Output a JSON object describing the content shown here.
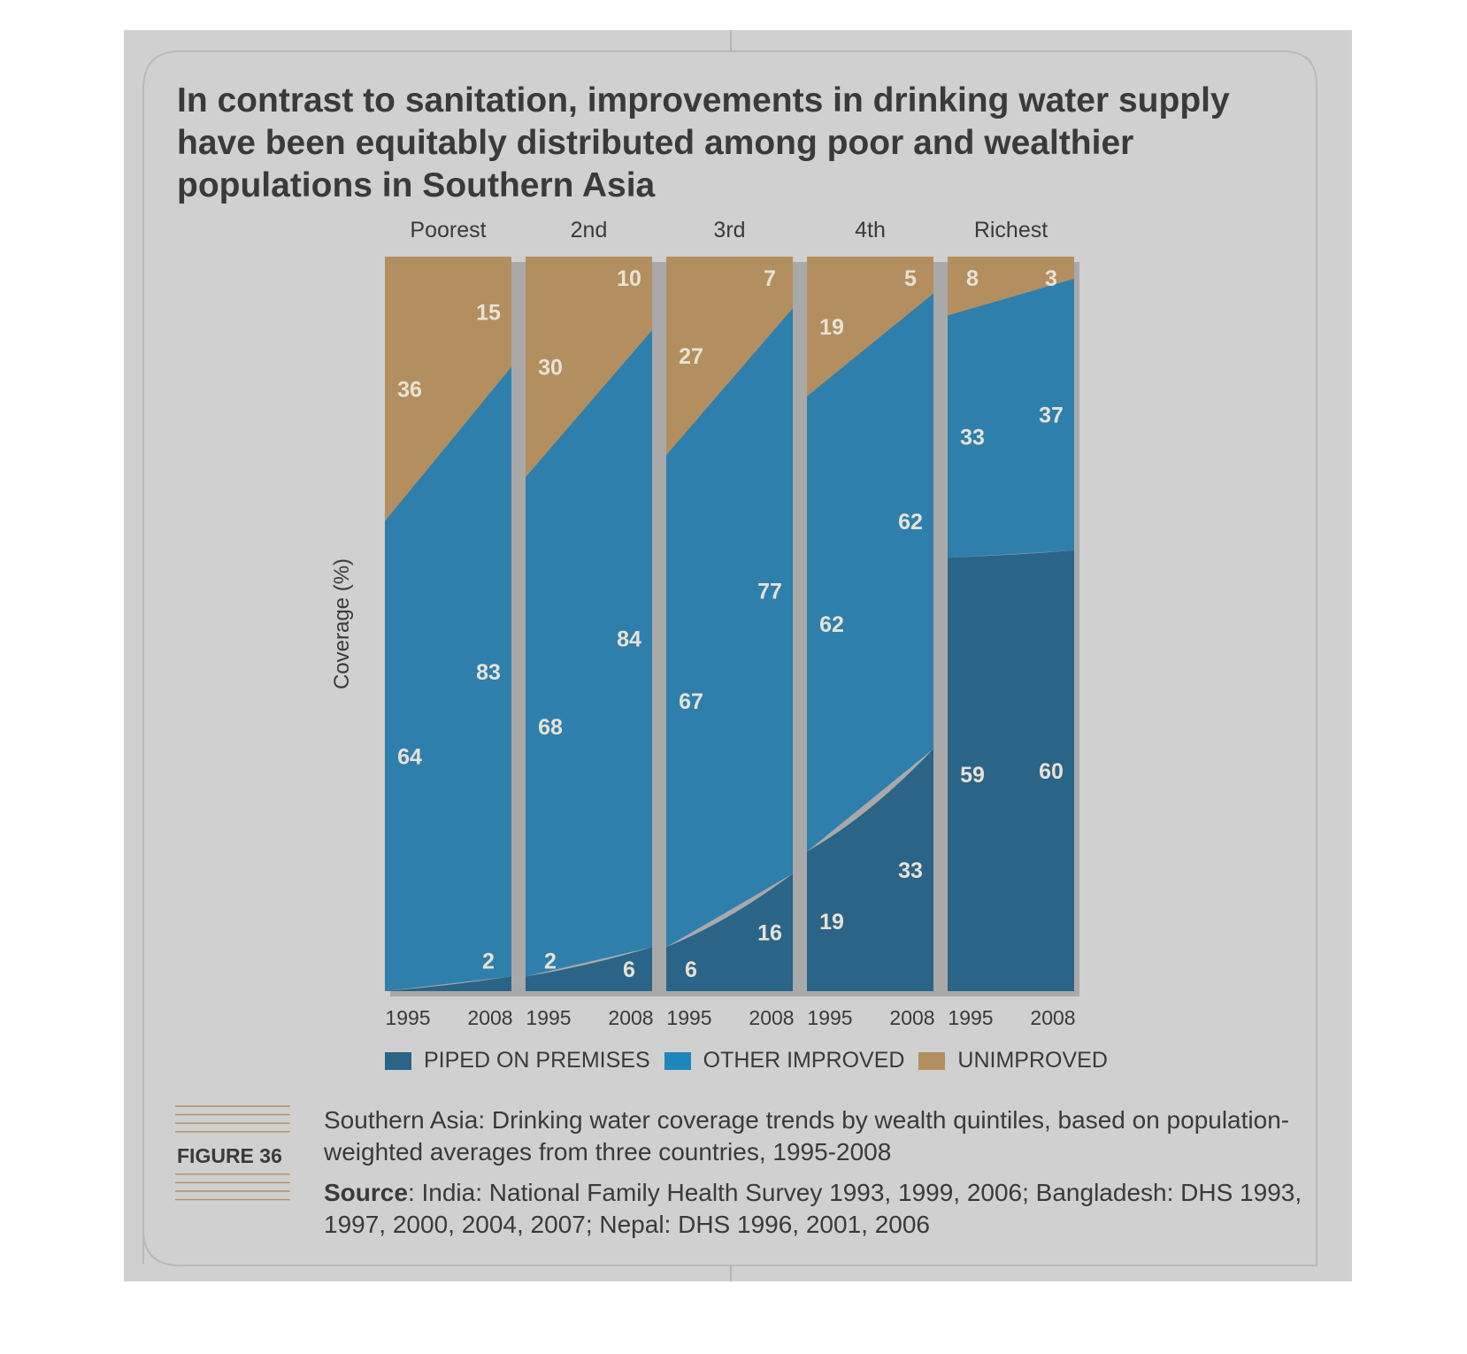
{
  "title_lines": [
    "In contrast to sanitation, improvements in drinking water supply",
    "have been equitably distributed among poor and wealthier",
    "populations in Southern Asia"
  ],
  "figure_label": "FIGURE 36",
  "caption": "Southern Asia: Drinking water coverage trends by wealth quintiles, based on population-weighted averages from three countries, 1995-2008",
  "source_label": "Source",
  "source_text": ": India: National Family Health Survey 1993, 1999, 2006; Bangladesh: DHS 1993, 1997, 2000, 2004, 2007; Nepal: DHS 1996, 2001, 2006",
  "colors": {
    "page_background": "#d0d0d0",
    "piped": "#2a6487",
    "other_improved": "#2e7fac",
    "unimproved": "#b38f5f",
    "text": "#3a3a3a",
    "data_label": "#e8e2d6",
    "figure_rule": "#b38f5f"
  },
  "chart_data": {
    "type": "area",
    "layout": "small multiples, 100% stacked areas per wealth quintile",
    "ylabel": "Coverage (%)",
    "ylim": [
      0,
      100
    ],
    "panels": [
      {
        "group": "Poorest",
        "x": [
          "1995",
          "2008"
        ],
        "series": [
          {
            "name": "PIPED ON PREMISES",
            "values": [
              0,
              2
            ]
          },
          {
            "name": "OTHER IMPROVED",
            "values": [
              64,
              83
            ]
          },
          {
            "name": "UNIMPROVED",
            "values": [
              36,
              15
            ]
          }
        ],
        "labels": [
          {
            "year": "1995",
            "texts": [
              "",
              "64",
              "36"
            ]
          },
          {
            "year": "2008",
            "texts": [
              "2",
              "83",
              "15"
            ]
          }
        ]
      },
      {
        "group": "2nd",
        "x": [
          "1995",
          "2008"
        ],
        "series": [
          {
            "name": "PIPED ON PREMISES",
            "values": [
              2,
              6
            ]
          },
          {
            "name": "OTHER IMPROVED",
            "values": [
              68,
              84
            ]
          },
          {
            "name": "UNIMPROVED",
            "values": [
              30,
              10
            ]
          }
        ],
        "labels": [
          {
            "year": "1995",
            "texts": [
              "2",
              "68",
              "30"
            ]
          },
          {
            "year": "2008",
            "texts": [
              "6",
              "84",
              "10"
            ]
          }
        ]
      },
      {
        "group": "3rd",
        "x": [
          "1995",
          "2008"
        ],
        "series": [
          {
            "name": "PIPED ON PREMISES",
            "values": [
              6,
              16
            ]
          },
          {
            "name": "OTHER IMPROVED",
            "values": [
              67,
              77
            ]
          },
          {
            "name": "UNIMPROVED",
            "values": [
              27,
              7
            ]
          }
        ],
        "labels": [
          {
            "year": "1995",
            "texts": [
              "6",
              "67",
              "27"
            ]
          },
          {
            "year": "2008",
            "texts": [
              "16",
              "77",
              "7"
            ]
          }
        ]
      },
      {
        "group": "4th",
        "x": [
          "1995",
          "2008"
        ],
        "series": [
          {
            "name": "PIPED ON PREMISES",
            "values": [
              19,
              33
            ]
          },
          {
            "name": "OTHER IMPROVED",
            "values": [
              62,
              62
            ]
          },
          {
            "name": "UNIMPROVED",
            "values": [
              19,
              5
            ]
          }
        ],
        "labels": [
          {
            "year": "1995",
            "texts": [
              "19",
              "62",
              "19"
            ]
          },
          {
            "year": "2008",
            "texts": [
              "33",
              "62",
              "5"
            ]
          }
        ]
      },
      {
        "group": "Richest",
        "x": [
          "1995",
          "2008"
        ],
        "series": [
          {
            "name": "PIPED ON PREMISES",
            "values": [
              59,
              60
            ]
          },
          {
            "name": "OTHER IMPROVED",
            "values": [
              33,
              37
            ]
          },
          {
            "name": "UNIMPROVED",
            "values": [
              8,
              3
            ]
          }
        ],
        "labels": [
          {
            "year": "1995",
            "texts": [
              "59",
              "33",
              "8"
            ]
          },
          {
            "year": "2008",
            "texts": [
              "60",
              "37",
              "3"
            ]
          }
        ]
      }
    ],
    "legend": [
      "PIPED ON PREMISES",
      "OTHER IMPROVED",
      "UNIMPROVED"
    ],
    "legend_position": "bottom",
    "grid": false
  }
}
